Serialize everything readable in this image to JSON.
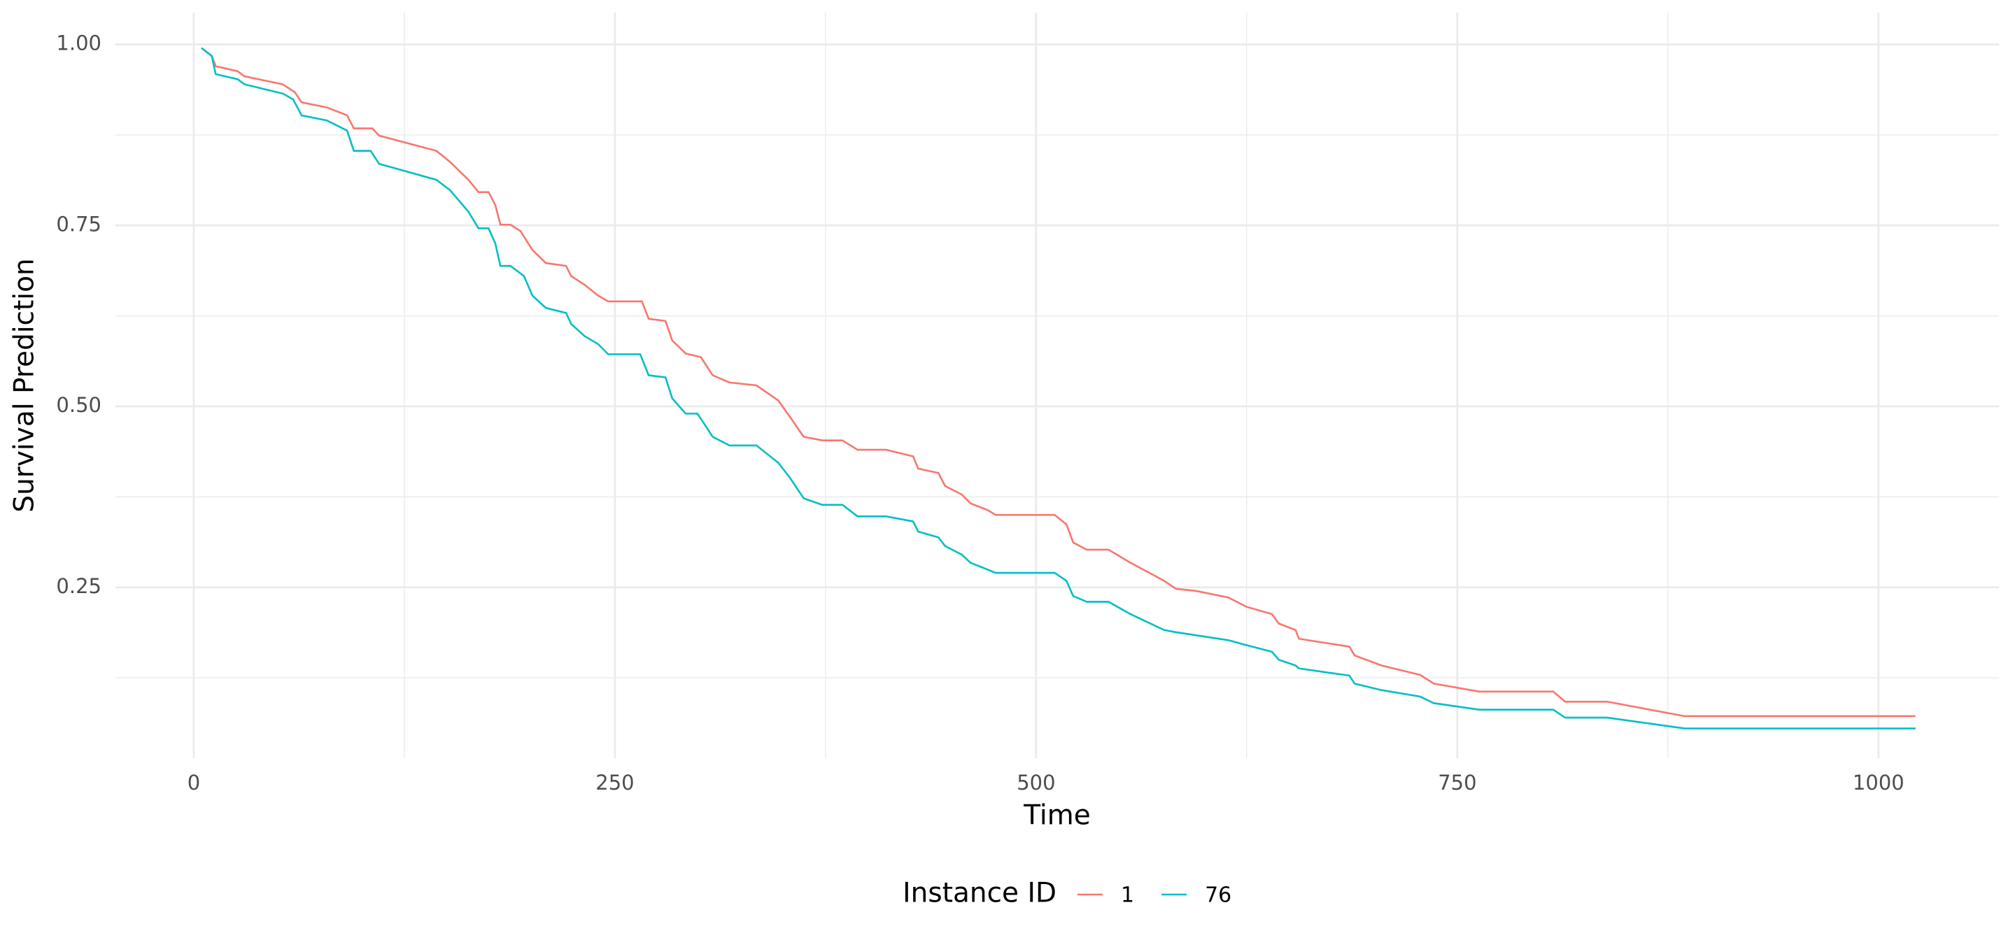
{
  "chart_data": {
    "type": "line",
    "x_label": "Time",
    "y_label": "Survival Prediction",
    "legend_title": "Instance ID",
    "legend": "bottom",
    "grid": true,
    "xlim": [
      -46.5,
      1071.5
    ],
    "ylim": [
      0.014,
      1.044
    ],
    "xticks": [
      0,
      250,
      500,
      750,
      1000
    ],
    "yticks": [
      {
        "value": 0.25,
        "label": "0.25"
      },
      {
        "value": 0.5,
        "label": "0.50"
      },
      {
        "value": 0.75,
        "label": "0.75"
      },
      {
        "value": 1,
        "label": "1.00"
      }
    ],
    "xminor": [
      125,
      375,
      625,
      875
    ],
    "yminor": [
      0.125,
      0.375,
      0.625,
      0.875
    ],
    "series": [
      {
        "name": "1",
        "color": "#F8766D",
        "x": [
          4.6,
          10.7,
          13,
          26,
          30,
          52.7,
          60,
          64,
          79,
          91,
          95,
          106,
          110,
          144,
          152,
          163,
          169,
          175,
          179,
          182,
          188,
          194,
          201,
          209,
          221,
          224,
          232,
          240,
          246,
          266,
          270,
          280,
          284,
          292,
          301,
          308,
          318,
          334,
          347,
          354,
          362,
          373,
          385,
          394,
          411,
          427,
          430,
          442,
          446,
          456,
          461,
          471,
          476,
          511,
          518,
          522,
          530,
          543,
          556,
          576,
          583,
          595,
          614,
          625,
          640,
          644,
          654,
          656,
          686,
          689,
          705,
          728,
          736,
          763,
          807,
          814,
          839,
          885,
          1022
        ],
        "values": [
          0.995,
          0.984,
          0.97,
          0.963,
          0.956,
          0.945,
          0.934,
          0.92,
          0.913,
          0.902,
          0.884,
          0.884,
          0.874,
          0.853,
          0.838,
          0.813,
          0.796,
          0.796,
          0.778,
          0.751,
          0.751,
          0.742,
          0.716,
          0.698,
          0.694,
          0.68,
          0.668,
          0.653,
          0.645,
          0.645,
          0.621,
          0.618,
          0.591,
          0.573,
          0.568,
          0.543,
          0.533,
          0.529,
          0.508,
          0.485,
          0.458,
          0.453,
          0.453,
          0.44,
          0.44,
          0.431,
          0.414,
          0.408,
          0.39,
          0.378,
          0.366,
          0.357,
          0.35,
          0.35,
          0.337,
          0.312,
          0.302,
          0.302,
          0.284,
          0.259,
          0.248,
          0.245,
          0.236,
          0.223,
          0.213,
          0.2,
          0.191,
          0.179,
          0.168,
          0.156,
          0.142,
          0.129,
          0.117,
          0.106,
          0.106,
          0.092,
          0.092,
          0.072,
          0.072
        ]
      },
      {
        "name": "76",
        "color": "#00BFC4",
        "x": [
          4.6,
          10.7,
          13,
          26,
          30,
          53,
          59,
          64,
          79,
          91,
          95,
          105,
          110,
          144,
          152,
          163,
          169,
          175,
          179,
          182,
          188,
          196,
          201,
          209,
          221,
          224,
          232,
          240,
          246,
          265,
          270,
          280,
          284,
          292,
          299,
          308,
          318,
          334,
          347,
          354,
          362,
          373,
          385,
          394,
          411,
          427,
          430,
          442,
          446,
          456,
          461,
          476,
          511,
          518,
          522,
          530,
          543,
          556,
          576,
          583,
          614,
          625,
          640,
          644,
          654,
          656,
          686,
          689,
          705,
          728,
          736,
          763,
          807,
          814,
          839,
          885,
          1022
        ],
        "values": [
          0.995,
          0.984,
          0.959,
          0.952,
          0.945,
          0.932,
          0.924,
          0.902,
          0.895,
          0.881,
          0.853,
          0.853,
          0.835,
          0.813,
          0.799,
          0.769,
          0.746,
          0.746,
          0.725,
          0.694,
          0.694,
          0.68,
          0.653,
          0.636,
          0.629,
          0.614,
          0.597,
          0.586,
          0.572,
          0.572,
          0.543,
          0.54,
          0.511,
          0.49,
          0.49,
          0.458,
          0.446,
          0.446,
          0.422,
          0.401,
          0.373,
          0.364,
          0.364,
          0.348,
          0.348,
          0.341,
          0.327,
          0.319,
          0.307,
          0.295,
          0.284,
          0.27,
          0.27,
          0.259,
          0.238,
          0.23,
          0.23,
          0.213,
          0.191,
          0.188,
          0.177,
          0.17,
          0.161,
          0.15,
          0.142,
          0.138,
          0.128,
          0.117,
          0.108,
          0.099,
          0.09,
          0.081,
          0.081,
          0.07,
          0.07,
          0.055,
          0.055
        ]
      }
    ]
  }
}
